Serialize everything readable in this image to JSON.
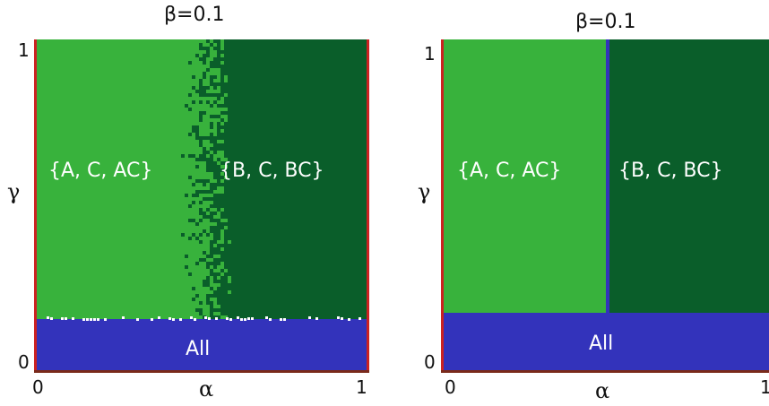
{
  "colors": {
    "light_green": "#38b23c",
    "dark_green": "#0a5e2a",
    "blue": "#3333bb",
    "red_border": "#cc2222",
    "brown_border": "#7a2a1a"
  },
  "chart_data": [
    {
      "type": "heatmap",
      "title": "β=0.1",
      "xlabel": "α",
      "ylabel": "γ",
      "xlim": [
        0,
        1
      ],
      "ylim": [
        0,
        1
      ],
      "x_ticks": [
        "0",
        "1"
      ],
      "y_ticks": [
        "0",
        "1"
      ],
      "regions": [
        {
          "label": "{A, C, AC}",
          "color": "light_green",
          "x_range": [
            0,
            0.5
          ],
          "y_range": [
            0.17,
            1
          ]
        },
        {
          "label": "{B, C, BC}",
          "color": "dark_green",
          "x_range": [
            0.5,
            1
          ],
          "y_range": [
            0.17,
            1
          ]
        },
        {
          "label": "All",
          "color": "blue",
          "x_range": [
            0,
            1
          ],
          "y_range": [
            0,
            0.17
          ]
        }
      ],
      "boundary": "noisy"
    },
    {
      "type": "heatmap",
      "title": "β=0.1",
      "xlabel": "α",
      "ylabel": "γ",
      "xlim": [
        0,
        1
      ],
      "ylim": [
        0,
        1
      ],
      "x_ticks": [
        "0",
        "1"
      ],
      "y_ticks": [
        "0",
        "1"
      ],
      "regions": [
        {
          "label": "{A, C, AC}",
          "color": "light_green",
          "x_range": [
            0,
            0.5
          ],
          "y_range": [
            0.18,
            1
          ]
        },
        {
          "label": "{B, C, BC}",
          "color": "dark_green",
          "x_range": [
            0.5,
            1
          ],
          "y_range": [
            0.18,
            1
          ]
        },
        {
          "label": "All",
          "color": "blue",
          "x_range": [
            0,
            1
          ],
          "y_range": [
            0,
            0.18
          ]
        }
      ],
      "boundary": "sharp"
    }
  ]
}
